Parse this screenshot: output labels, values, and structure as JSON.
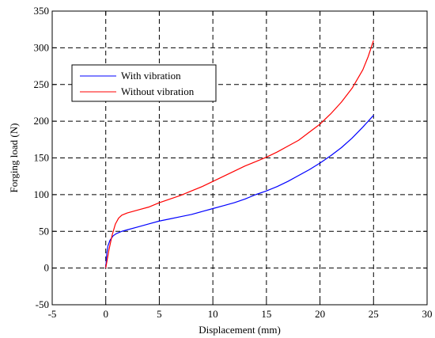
{
  "chart_data": {
    "type": "line",
    "title": "",
    "xlabel": "Displacement (mm)",
    "ylabel": "Forging load (N)",
    "xlim": [
      -5,
      30
    ],
    "ylim": [
      -50,
      350
    ],
    "xticks": [
      -5,
      0,
      5,
      10,
      15,
      20,
      25,
      30
    ],
    "yticks": [
      -50,
      0,
      50,
      100,
      150,
      200,
      250,
      300,
      350
    ],
    "x_tick_labels": [
      "-5",
      "0",
      "5",
      "10",
      "15",
      "20",
      "25",
      "30"
    ],
    "y_tick_labels": [
      "-50",
      "0",
      "50",
      "100",
      "150",
      "200",
      "250",
      "300",
      "350"
    ],
    "grid": true,
    "grid_style": "dashed",
    "legend": {
      "placement": "upper-left",
      "entries": [
        "With vibration",
        "Without vibration"
      ]
    },
    "series": [
      {
        "name": "With vibration",
        "color": "#0000ff",
        "x": [
          0,
          0.1,
          0.2,
          0.4,
          0.7,
          1.0,
          1.5,
          2,
          3,
          4,
          5,
          6,
          7,
          8,
          9,
          10,
          11,
          12,
          13,
          14,
          15,
          16,
          17,
          18,
          19,
          20,
          21,
          22,
          23,
          24,
          24.5,
          25
        ],
        "y": [
          0,
          20,
          30,
          38,
          44,
          47,
          50,
          52,
          56,
          60,
          64,
          67,
          70,
          73,
          77,
          81,
          85,
          89,
          94,
          100,
          105,
          111,
          118,
          126,
          134,
          143,
          153,
          164,
          177,
          192,
          200,
          208
        ]
      },
      {
        "name": "Without vibration",
        "color": "#ff0000",
        "x": [
          0,
          0.3,
          0.6,
          0.9,
          1.2,
          1.5,
          2,
          2.5,
          3,
          4,
          5,
          6,
          7,
          8,
          9,
          10,
          11,
          12,
          13,
          14,
          15,
          16,
          17,
          18,
          19,
          20,
          21,
          22,
          23,
          24,
          24.5,
          25
        ],
        "y": [
          0,
          25,
          45,
          60,
          68,
          72,
          75,
          77,
          79,
          83,
          89,
          94,
          99,
          105,
          111,
          118,
          125,
          132,
          139,
          145,
          151,
          158,
          166,
          174,
          185,
          196,
          210,
          226,
          245,
          270,
          288,
          310
        ]
      }
    ]
  }
}
